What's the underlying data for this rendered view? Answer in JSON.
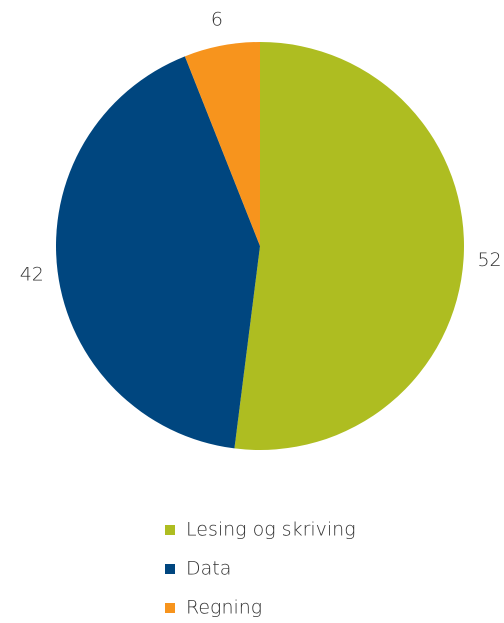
{
  "chart_data": {
    "type": "pie",
    "categories": [
      "Lesing og skriving",
      "Data",
      "Regning"
    ],
    "values": [
      52,
      42,
      6
    ],
    "colors": [
      "#aebd21",
      "#00467f",
      "#f7941d"
    ]
  }
}
